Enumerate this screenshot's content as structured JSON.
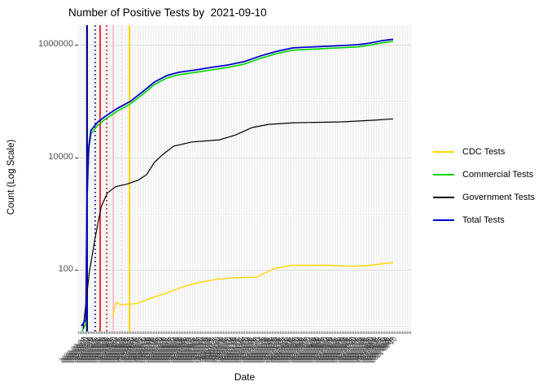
{
  "title": "Number of Positive Tests by  2021-09-10",
  "y_axis": {
    "label": "Count (Log Scale)",
    "scale": "log10",
    "major_ticks": [
      {
        "label": "1000000",
        "value": 1000000
      },
      {
        "label": "10000",
        "value": 10000
      },
      {
        "label": "100",
        "value": 100
      }
    ],
    "minor_gridlines": [
      10,
      1000,
      100000
    ]
  },
  "x_axis": {
    "label": "Date",
    "start": "2020-03-04",
    "end": "2021-09-10",
    "tick_label_step_days": 3
  },
  "colors": {
    "cdc": "#FFD700",
    "commercial": "#00D500",
    "government": "#000000",
    "total": "#0000CD",
    "grid": "#d9d9d9",
    "axis_text": "#4d4d4d"
  },
  "chart_data": {
    "type": "line",
    "title": "Number of Positive Tests by  2021-09-10",
    "xlabel": "Date",
    "ylabel": "Count (Log Scale)",
    "y_scale": "log10",
    "ylim": [
      8,
      2000000
    ],
    "x_range": [
      "2020-03-04",
      "2021-09-10"
    ],
    "grid": true,
    "legend_position": "right",
    "series": [
      {
        "name": "CDC Tests",
        "color": "#FFD700",
        "width": 1.4,
        "points": [
          [
            "2020-04-28",
            15
          ],
          [
            "2020-05-05",
            26
          ],
          [
            "2020-05-12",
            24
          ],
          [
            "2020-06-10",
            25
          ],
          [
            "2020-07-01",
            30
          ],
          [
            "2020-08-01",
            38
          ],
          [
            "2020-09-01",
            50
          ],
          [
            "2020-10-01",
            60
          ],
          [
            "2020-11-01",
            68
          ],
          [
            "2020-12-01",
            72
          ],
          [
            "2021-01-10",
            74
          ],
          [
            "2021-02-10",
            105
          ],
          [
            "2021-03-15",
            120
          ],
          [
            "2021-05-15",
            120
          ],
          [
            "2021-07-01",
            115
          ],
          [
            "2021-08-01",
            120
          ],
          [
            "2021-09-10",
            135
          ]
        ]
      },
      {
        "name": "Commercial Tests",
        "color": "#00D500",
        "width": 1.6,
        "points": [
          [
            "2020-03-05",
            8
          ],
          [
            "2020-03-12",
            11
          ],
          [
            "2020-03-14",
            1700
          ],
          [
            "2020-03-17",
            13000
          ],
          [
            "2020-03-21",
            26000
          ],
          [
            "2020-04-02",
            37000
          ],
          [
            "2020-04-16",
            48000
          ],
          [
            "2020-05-08",
            67000
          ],
          [
            "2020-05-30",
            88000
          ],
          [
            "2020-06-21",
            131000
          ],
          [
            "2020-07-12",
            196000
          ],
          [
            "2020-08-03",
            256000
          ],
          [
            "2020-08-25",
            293000
          ],
          [
            "2020-09-23",
            322000
          ],
          [
            "2020-10-22",
            357000
          ],
          [
            "2020-11-20",
            395000
          ],
          [
            "2020-12-19",
            453000
          ],
          [
            "2021-01-17",
            572000
          ],
          [
            "2021-02-15",
            695000
          ],
          [
            "2021-03-16",
            800000
          ],
          [
            "2021-04-14",
            828000
          ],
          [
            "2021-05-13",
            856000
          ],
          [
            "2021-06-11",
            884000
          ],
          [
            "2021-07-10",
            915000
          ],
          [
            "2021-07-31",
            980000
          ],
          [
            "2021-08-22",
            1080000
          ],
          [
            "2021-09-10",
            1150000
          ]
        ]
      },
      {
        "name": "Government Tests",
        "color": "#000000",
        "width": 1.2,
        "points": [
          [
            "2020-03-07",
            9
          ],
          [
            "2020-03-18",
            90
          ],
          [
            "2020-03-29",
            400
          ],
          [
            "2020-04-08",
            1300
          ],
          [
            "2020-04-19",
            2300
          ],
          [
            "2020-05-04",
            3000
          ],
          [
            "2020-05-23",
            3300
          ],
          [
            "2020-06-13",
            3900
          ],
          [
            "2020-06-28",
            4900
          ],
          [
            "2020-07-12",
            8100
          ],
          [
            "2020-07-27",
            11200
          ],
          [
            "2020-08-15",
            15700
          ],
          [
            "2020-09-16",
            18600
          ],
          [
            "2020-11-05",
            20400
          ],
          [
            "2020-12-04",
            25000
          ],
          [
            "2021-01-02",
            33700
          ],
          [
            "2021-01-31",
            38300
          ],
          [
            "2021-03-16",
            41000
          ],
          [
            "2021-06-11",
            42500
          ],
          [
            "2021-08-08",
            45600
          ],
          [
            "2021-09-10",
            48000
          ]
        ]
      },
      {
        "name": "Total Tests",
        "color": "#0000CD",
        "width": 1.8,
        "points": [
          [
            "2020-03-04",
            10
          ],
          [
            "2020-03-12",
            13
          ],
          [
            "2020-03-14",
            2000
          ],
          [
            "2020-03-17",
            15000
          ],
          [
            "2020-03-21",
            30000
          ],
          [
            "2020-04-02",
            42000
          ],
          [
            "2020-04-16",
            54000
          ],
          [
            "2020-05-08",
            75000
          ],
          [
            "2020-05-30",
            98000
          ],
          [
            "2020-06-21",
            146000
          ],
          [
            "2020-07-12",
            217000
          ],
          [
            "2020-08-03",
            283000
          ],
          [
            "2020-08-25",
            324000
          ],
          [
            "2020-09-23",
            356000
          ],
          [
            "2020-10-22",
            395000
          ],
          [
            "2020-11-20",
            436000
          ],
          [
            "2020-12-19",
            500000
          ],
          [
            "2021-01-17",
            631000
          ],
          [
            "2021-02-15",
            765000
          ],
          [
            "2021-03-16",
            877000
          ],
          [
            "2021-04-14",
            908000
          ],
          [
            "2021-05-13",
            937000
          ],
          [
            "2021-06-11",
            967000
          ],
          [
            "2021-07-10",
            1000000
          ],
          [
            "2021-07-31",
            1070000
          ],
          [
            "2021-08-22",
            1180000
          ],
          [
            "2021-09-10",
            1250000
          ]
        ]
      }
    ],
    "vlines": [
      {
        "color": "#00008B",
        "style": "solid",
        "x_frac": 0.018,
        "width": 2.2
      },
      {
        "color": "#00008B",
        "style": "dotted",
        "x_frac": 0.044,
        "width": 1.6
      },
      {
        "color": "#FF0000",
        "style": "solid",
        "x_frac": 0.06,
        "width": 1.6
      },
      {
        "color": "#D10000",
        "style": "dotted",
        "x_frac": 0.081,
        "width": 1.6
      },
      {
        "color": "#FFB6C1",
        "style": "solid",
        "x_frac": 0.102,
        "width": 1.6
      },
      {
        "color": "#FFD0D8",
        "style": "dotted",
        "x_frac": 0.128,
        "width": 1.6
      },
      {
        "color": "#FFD700",
        "style": "solid",
        "x_frac": 0.154,
        "width": 2.0
      }
    ]
  },
  "legend": {
    "entries": [
      "CDC Tests",
      "Commercial Tests",
      "Government Tests",
      "Total Tests"
    ]
  }
}
